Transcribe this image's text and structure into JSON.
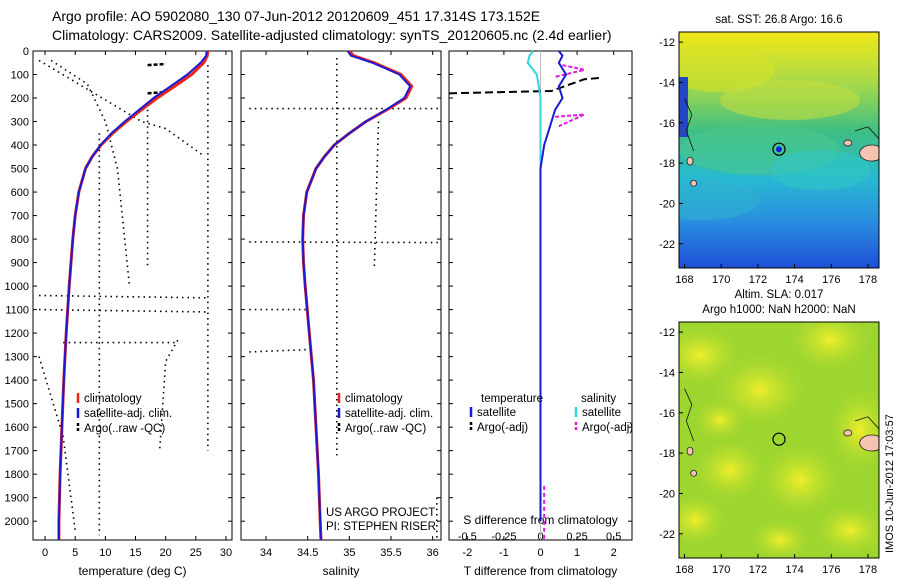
{
  "header": {
    "line1": "Argo profile: AO 5902080_130 07-Jun-2012 20120609_451 17.314S 173.152E",
    "line2": "Climatology: CARS2009. Satellite-adjusted climatology: synTS_20120605.nc (2.4d earlier)"
  },
  "colors": {
    "climatology": "#e8261b",
    "satellite": "#1a1ad6",
    "argo": "#000000",
    "salinity_sat": "#33d6e0",
    "salinity_argo": "#e01ae0"
  },
  "depth_axis": {
    "ticks": [
      "0",
      "100",
      "200",
      "300",
      "400",
      "500",
      "600",
      "700",
      "800",
      "900",
      "1000",
      "1100",
      "1200",
      "1300",
      "1400",
      "1500",
      "1600",
      "1700",
      "1800",
      "1900",
      "2000"
    ],
    "max": 2080
  },
  "chart_data": [
    {
      "type": "line",
      "name": "temperature-profile",
      "xlabel": "temperature (deg C)",
      "ylabel": "",
      "xlim": [
        -2,
        31
      ],
      "ylim": [
        2080,
        0
      ],
      "xticks": [
        "0",
        "5",
        "10",
        "15",
        "20",
        "25",
        "30"
      ],
      "legend": [
        "climatology",
        "satellite-adj. clim.",
        "Argo(..raw -QC)"
      ],
      "depth": [
        0,
        20,
        50,
        100,
        150,
        200,
        250,
        300,
        350,
        400,
        450,
        500,
        600,
        700,
        800,
        900,
        1000,
        1200,
        1400,
        1600,
        1800,
        2000,
        2080
      ],
      "climatology": [
        27.0,
        26.9,
        26.3,
        24.3,
        21.5,
        18.6,
        16.0,
        13.5,
        11.2,
        9.3,
        7.8,
        6.7,
        5.6,
        5.0,
        4.6,
        4.3,
        4.0,
        3.5,
        3.1,
        2.8,
        2.5,
        2.3,
        2.3
      ],
      "satellite": [
        26.8,
        26.7,
        25.8,
        23.6,
        20.8,
        18.0,
        15.6,
        13.2,
        11.0,
        9.2,
        7.8,
        6.7,
        5.6,
        5.0,
        4.6,
        4.3,
        4.0,
        3.5,
        3.1,
        2.8,
        2.5,
        2.3,
        2.3
      ]
    },
    {
      "type": "line",
      "name": "salinity-profile",
      "xlabel": "salinity",
      "ylabel": "",
      "xlim": [
        33.7,
        36.1
      ],
      "ylim": [
        2080,
        0
      ],
      "xticks": [
        "34",
        "34.5",
        "35",
        "35.5",
        "36"
      ],
      "legend": [
        "climatology",
        "satellite-adj. clim.",
        "Argo(..raw -QC)"
      ],
      "notes": [
        "US ARGO PROJECT",
        "PI: STEPHEN RISER"
      ],
      "depth": [
        0,
        20,
        50,
        100,
        150,
        200,
        250,
        300,
        350,
        400,
        450,
        500,
        600,
        700,
        800,
        900,
        1000,
        1200,
        1400,
        1600,
        1800,
        2000,
        2080
      ],
      "climatology": [
        35.0,
        35.05,
        35.3,
        35.62,
        35.75,
        35.68,
        35.45,
        35.2,
        35.0,
        34.82,
        34.7,
        34.6,
        34.49,
        34.45,
        34.44,
        34.45,
        34.47,
        34.52,
        34.57,
        34.6,
        34.63,
        34.65,
        34.66
      ],
      "satellite": [
        34.98,
        35.02,
        35.28,
        35.6,
        35.73,
        35.66,
        35.44,
        35.2,
        35.0,
        34.82,
        34.7,
        34.6,
        34.49,
        34.45,
        34.44,
        34.45,
        34.47,
        34.52,
        34.57,
        34.6,
        34.63,
        34.65,
        34.66
      ]
    },
    {
      "type": "line",
      "name": "difference-profile",
      "xlabel": "T difference from climatology",
      "xlabel_top": "S difference from climatology",
      "xlim": [
        -2.5,
        2.5
      ],
      "ylim": [
        2080,
        0
      ],
      "xticks": [
        "-2",
        "-1",
        "0",
        "1",
        "2"
      ],
      "xticks_top": [
        "-0.5",
        "-0.25",
        "0",
        "0.25",
        "0.5"
      ],
      "legend": {
        "temperature": [
          "satellite",
          "Argo(-adj)"
        ],
        "salinity": [
          "satellite",
          "Argo(-adj)"
        ]
      },
      "legend_titles": [
        "temperature",
        "salinity"
      ],
      "depth": [
        0,
        20,
        50,
        100,
        150,
        200,
        250,
        300,
        400,
        500,
        700,
        1000,
        1500,
        2000
      ],
      "t_satellite": [
        0.5,
        0.6,
        0.5,
        0.7,
        0.5,
        0.6,
        0.4,
        0.3,
        0.1,
        0.0,
        0.0,
        0.0,
        0.0,
        0.0
      ],
      "s_satellite": [
        -0.2,
        -0.3,
        -0.35,
        -0.1,
        -0.05,
        0.0,
        0.0,
        0.0,
        0.0,
        0.0,
        0.0,
        0.0,
        0.0,
        0.0
      ]
    },
    {
      "type": "heatmap",
      "name": "sst-map",
      "title": "sat. SST: 26.8 Argo: 16.6",
      "xticks": [
        "168",
        "170",
        "172",
        "174",
        "176",
        "178"
      ],
      "yticks": [
        "-12",
        "-14",
        "-16",
        "-18",
        "-20",
        "-22"
      ],
      "xlim": [
        167.7,
        178.6
      ],
      "ylim": [
        -23.2,
        -11.5
      ],
      "profile_position": [
        173.15,
        -17.31
      ]
    },
    {
      "type": "heatmap",
      "name": "sla-map",
      "title": "Altim. SLA: 0.017",
      "subtitle": "Argo h1000: NaN h2000: NaN",
      "xticks": [
        "168",
        "170",
        "172",
        "174",
        "176",
        "178"
      ],
      "yticks": [
        "-12",
        "-14",
        "-16",
        "-18",
        "-20",
        "-22"
      ],
      "xlim": [
        167.7,
        178.6
      ],
      "ylim": [
        -23.2,
        -11.5
      ],
      "profile_position": [
        173.15,
        -17.31
      ]
    }
  ],
  "footer": {
    "stamp": "IMOS 10-Jun-2012 17:03:57"
  }
}
